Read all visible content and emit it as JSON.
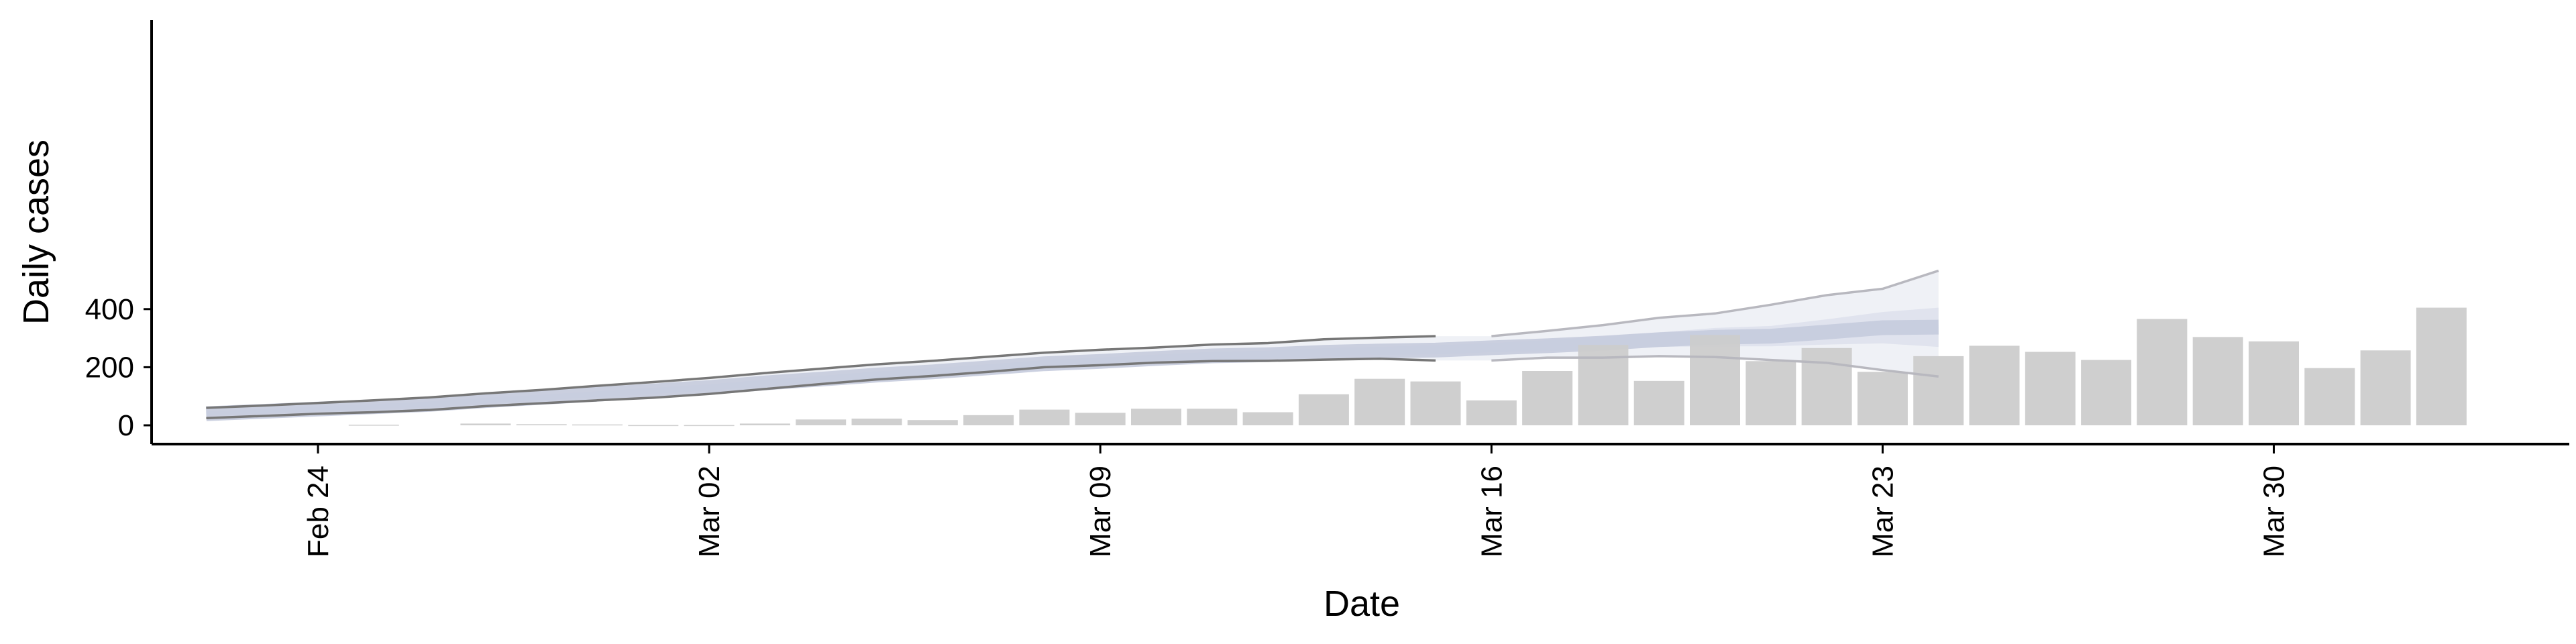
{
  "chart_data": {
    "type": "bar",
    "xlabel": "Date",
    "ylabel": "Daily cases",
    "x_tick_labels": [
      "Feb 24",
      "Mar 02",
      "Mar 09",
      "Mar 16",
      "Mar 23",
      "Mar 30"
    ],
    "x_tick_dates": [
      "2020-02-24",
      "2020-03-02",
      "2020-03-09",
      "2020-03-16",
      "2020-03-23",
      "2020-03-30"
    ],
    "y_tick_values": [
      0,
      200,
      400
    ],
    "ylim": [
      -25,
      560
    ],
    "xlim": [
      "2020-02-20",
      "2020-04-04"
    ],
    "grid": false,
    "bar_series": {
      "dates": [
        "2020-02-25",
        "2020-02-27",
        "2020-02-28",
        "2020-02-29",
        "2020-03-01",
        "2020-03-02",
        "2020-03-03",
        "2020-03-04",
        "2020-03-05",
        "2020-03-06",
        "2020-03-07",
        "2020-03-08",
        "2020-03-09",
        "2020-03-10",
        "2020-03-11",
        "2020-03-12",
        "2020-03-13",
        "2020-03-14",
        "2020-03-15",
        "2020-03-16",
        "2020-03-17",
        "2020-03-18",
        "2020-03-19",
        "2020-03-20",
        "2020-03-21",
        "2020-03-22",
        "2020-03-23",
        "2020-03-24",
        "2020-03-25",
        "2020-03-26",
        "2020-03-27",
        "2020-03-28",
        "2020-03-29",
        "2020-03-30",
        "2020-03-31",
        "2020-04-01",
        "2020-04-02"
      ],
      "values": [
        2,
        6,
        4,
        3,
        1,
        1,
        6,
        20,
        23,
        18,
        35,
        54,
        43,
        57,
        57,
        45,
        107,
        160,
        151,
        86,
        187,
        277,
        153,
        311,
        221,
        266,
        184,
        238,
        274,
        253,
        225,
        366,
        304,
        289,
        197,
        258,
        405
      ],
      "color": "#cccccc"
    },
    "estimate_series": {
      "dates": [
        "2020-02-22",
        "2020-02-23",
        "2020-02-24",
        "2020-02-25",
        "2020-02-26",
        "2020-02-27",
        "2020-02-28",
        "2020-02-29",
        "2020-03-01",
        "2020-03-02",
        "2020-03-03",
        "2020-03-04",
        "2020-03-05",
        "2020-03-06",
        "2020-03-07",
        "2020-03-08",
        "2020-03-09",
        "2020-03-10",
        "2020-03-11",
        "2020-03-12",
        "2020-03-13",
        "2020-03-14",
        "2020-03-15",
        "2020-03-16",
        "2020-03-17",
        "2020-03-18",
        "2020-03-19",
        "2020-03-20",
        "2020-03-21",
        "2020-03-22",
        "2020-03-23",
        "2020-03-24"
      ],
      "outer_upper": [
        60,
        68,
        77,
        86,
        96,
        110,
        122,
        136,
        149,
        163,
        180,
        195,
        210,
        222,
        236,
        250,
        260,
        268,
        278,
        283,
        296,
        302,
        307,
        null,
        null,
        null,
        null,
        null,
        null,
        null,
        null,
        null
      ],
      "outer_lower": [
        25,
        32,
        40,
        45,
        53,
        66,
        76,
        86,
        95,
        108,
        125,
        142,
        158,
        170,
        184,
        200,
        207,
        216,
        221,
        222,
        226,
        229,
        223,
        null,
        null,
        null,
        null,
        null,
        null,
        null,
        null,
        null
      ],
      "outer_upper_late": [
        307,
        325,
        345,
        370,
        385,
        415,
        448,
        470,
        532
      ],
      "outer_lower_late": [
        223,
        233,
        233,
        238,
        235,
        225,
        215,
        190,
        168
      ],
      "mid_upper": [
        48,
        56,
        65,
        73,
        82,
        95,
        105,
        117,
        129,
        141,
        157,
        170,
        185,
        196,
        210,
        224,
        233,
        243,
        253,
        257,
        265,
        270,
        275,
        283,
        293,
        305,
        320,
        335,
        342,
        365,
        390,
        405
      ],
      "mid_lower": [
        33,
        40,
        48,
        55,
        63,
        75,
        86,
        97,
        108,
        120,
        134,
        148,
        162,
        173,
        187,
        200,
        208,
        217,
        225,
        230,
        237,
        243,
        244,
        252,
        256,
        262,
        270,
        272,
        272,
        278,
        282,
        270
      ],
      "center": [
        40,
        48,
        56,
        64,
        72,
        85,
        96,
        107,
        118,
        130,
        146,
        159,
        173,
        184,
        198,
        212,
        220,
        230,
        239,
        243,
        251,
        256,
        259,
        267,
        274,
        283,
        295,
        303,
        307,
        321,
        336,
        338
      ],
      "colors": {
        "outer_band": "#eceef4",
        "mid_band": "#dde1ec",
        "center_band": "#c5cbdd",
        "bound_line": "#777777",
        "late_bound_line": "#b8b8bf"
      }
    }
  }
}
